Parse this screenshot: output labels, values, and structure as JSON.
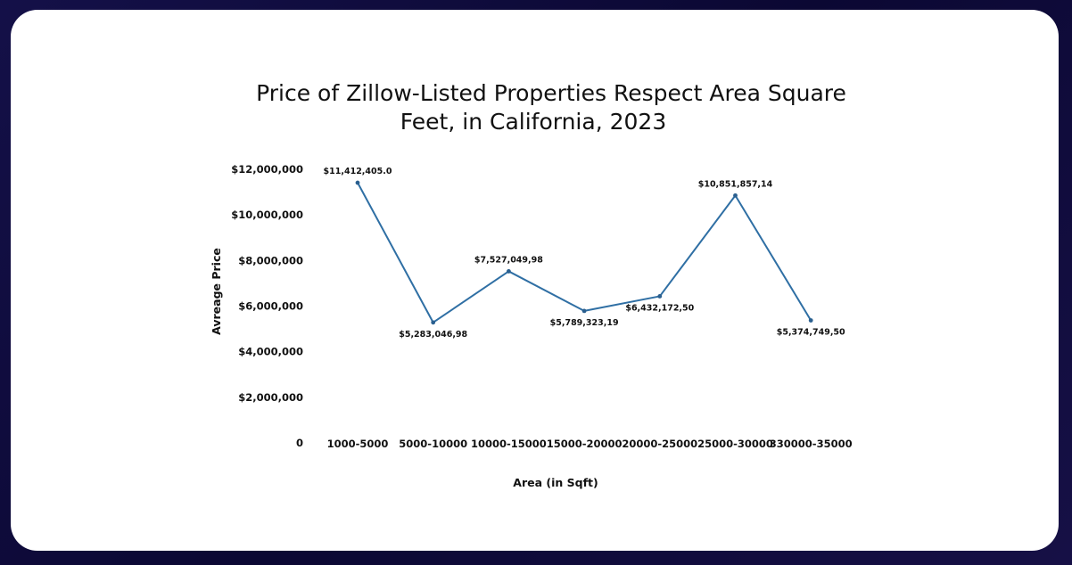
{
  "chart_data": {
    "type": "line",
    "title_lines": [
      "Price of Zillow-Listed Properties Respect Area Square",
      "Feet, in California, 2023"
    ],
    "xlabel": "Area (in Sqft)",
    "ylabel": "Avreage Price",
    "ylim": [
      0,
      12000000
    ],
    "yticks": [
      {
        "value": 0,
        "label": "0"
      },
      {
        "value": 2000000,
        "label": "$2,000,000"
      },
      {
        "value": 4000000,
        "label": "$4,000,000"
      },
      {
        "value": 6000000,
        "label": "$6,000,000"
      },
      {
        "value": 8000000,
        "label": "$8,000,000"
      },
      {
        "value": 10000000,
        "label": "$10,000,000"
      },
      {
        "value": 12000000,
        "label": "$12,000,000"
      }
    ],
    "categories": [
      "1000-5000",
      "5000-10000",
      "10000-15000",
      "15000-20000",
      "20000-25000",
      "25000-30000",
      "330000-35000"
    ],
    "values": [
      11412405.0,
      5283046.98,
      7527049.98,
      5789323.19,
      6432172.5,
      10851857.14,
      5374749.5
    ],
    "data_labels": [
      "$11,412,405.0",
      "$5,283,046,98",
      "$7,527,049,98",
      "$5,789,323,19",
      "$6,432,172,50",
      "$10,851,857,14",
      "$5,374,749,50"
    ],
    "grid": false,
    "legend": "none",
    "line_color": "#2f6fa4"
  }
}
